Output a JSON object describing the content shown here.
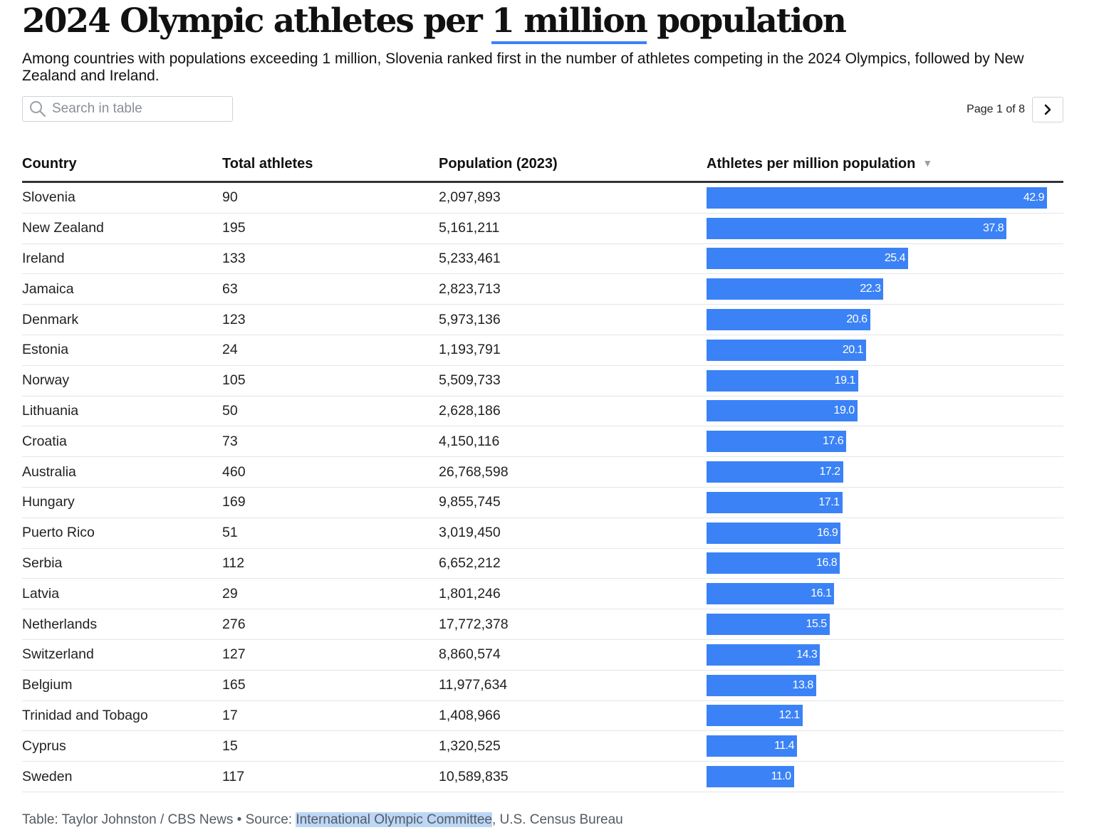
{
  "header": {
    "title_pre": "2024 Olympic athletes per ",
    "title_highlight": "1 million",
    "title_post": " population",
    "subtitle": "Among countries with populations exceeding 1 million, Slovenia ranked first in the number of athletes competing in the 2024 Olympics, followed by New Zealand and Ireland."
  },
  "search": {
    "placeholder": "Search in table",
    "value": "",
    "icon": "search-icon"
  },
  "pagination": {
    "label": "Page 1 of 8",
    "next_icon": "chevron-right-icon"
  },
  "colors": {
    "bar": "#3b82f6",
    "footer_highlight": "#bcd6f6"
  },
  "table": {
    "columns": [
      "Country",
      "Total athletes",
      "Population (2023)",
      "Athletes per million population"
    ],
    "sorted_column": 3,
    "sort_direction": "descending",
    "max_value": 42.9,
    "rows": [
      {
        "country": "Slovenia",
        "athletes": "90",
        "population": "2,097,893",
        "per_million": 42.9,
        "per_million_label": "42.9"
      },
      {
        "country": "New Zealand",
        "athletes": "195",
        "population": "5,161,211",
        "per_million": 37.8,
        "per_million_label": "37.8"
      },
      {
        "country": "Ireland",
        "athletes": "133",
        "population": "5,233,461",
        "per_million": 25.4,
        "per_million_label": "25.4"
      },
      {
        "country": "Jamaica",
        "athletes": "63",
        "population": "2,823,713",
        "per_million": 22.3,
        "per_million_label": "22.3"
      },
      {
        "country": "Denmark",
        "athletes": "123",
        "population": "5,973,136",
        "per_million": 20.6,
        "per_million_label": "20.6"
      },
      {
        "country": "Estonia",
        "athletes": "24",
        "population": "1,193,791",
        "per_million": 20.1,
        "per_million_label": "20.1"
      },
      {
        "country": "Norway",
        "athletes": "105",
        "population": "5,509,733",
        "per_million": 19.1,
        "per_million_label": "19.1"
      },
      {
        "country": "Lithuania",
        "athletes": "50",
        "population": "2,628,186",
        "per_million": 19.0,
        "per_million_label": "19.0"
      },
      {
        "country": "Croatia",
        "athletes": "73",
        "population": "4,150,116",
        "per_million": 17.6,
        "per_million_label": "17.6"
      },
      {
        "country": "Australia",
        "athletes": "460",
        "population": "26,768,598",
        "per_million": 17.2,
        "per_million_label": "17.2"
      },
      {
        "country": "Hungary",
        "athletes": "169",
        "population": "9,855,745",
        "per_million": 17.1,
        "per_million_label": "17.1"
      },
      {
        "country": "Puerto Rico",
        "athletes": "51",
        "population": "3,019,450",
        "per_million": 16.9,
        "per_million_label": "16.9"
      },
      {
        "country": "Serbia",
        "athletes": "112",
        "population": "6,652,212",
        "per_million": 16.8,
        "per_million_label": "16.8"
      },
      {
        "country": "Latvia",
        "athletes": "29",
        "population": "1,801,246",
        "per_million": 16.1,
        "per_million_label": "16.1"
      },
      {
        "country": "Netherlands",
        "athletes": "276",
        "population": "17,772,378",
        "per_million": 15.5,
        "per_million_label": "15.5"
      },
      {
        "country": "Switzerland",
        "athletes": "127",
        "population": "8,860,574",
        "per_million": 14.3,
        "per_million_label": "14.3"
      },
      {
        "country": "Belgium",
        "athletes": "165",
        "population": "11,977,634",
        "per_million": 13.8,
        "per_million_label": "13.8"
      },
      {
        "country": "Trinidad and Tobago",
        "athletes": "17",
        "population": "1,408,966",
        "per_million": 12.1,
        "per_million_label": "12.1"
      },
      {
        "country": "Cyprus",
        "athletes": "15",
        "population": "1,320,525",
        "per_million": 11.4,
        "per_million_label": "11.4"
      },
      {
        "country": "Sweden",
        "athletes": "117",
        "population": "10,589,835",
        "per_million": 11.0,
        "per_million_label": "11.0"
      }
    ]
  },
  "footer": {
    "prefix": "Table: Taylor Johnston / CBS News • Source: ",
    "link": "International Olympic Committee",
    "suffix": ", U.S. Census Bureau"
  }
}
